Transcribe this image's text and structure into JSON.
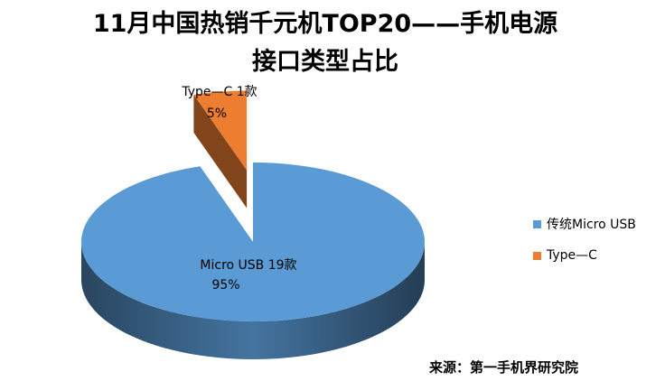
{
  "chart_data": {
    "type": "pie",
    "title_line1": "11月中国热销千元机TOP20——手机电源",
    "title_line2": "接口类型占比",
    "slices": [
      {
        "legend": "传统Micro USB",
        "label": "Micro USB  19款",
        "percent_label": "95%",
        "count": 19,
        "value": 95,
        "color": "#5b9bd5"
      },
      {
        "legend": "Type—C",
        "label": "Type—C 1款",
        "percent_label": "5%",
        "count": 1,
        "value": 5,
        "color": "#ed7d31"
      }
    ],
    "legend_position": "right",
    "exploded": true,
    "style": "3d"
  },
  "source": "来源：第一手机界研究院"
}
